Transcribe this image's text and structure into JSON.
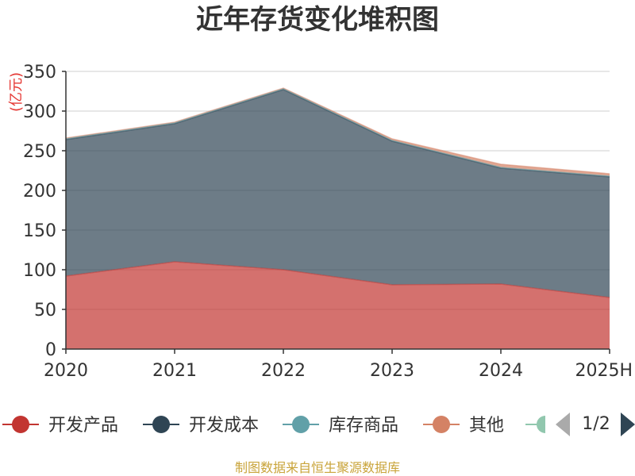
{
  "colors": {
    "series": [
      "#c23531",
      "#2f4554",
      "#61a0a8",
      "#d48265",
      "#91c7ae"
    ],
    "unit": "#e53935",
    "source": "#c9a43a",
    "pager_active": "#2f4554",
    "pager_inactive": "#aaaaaa"
  },
  "legend": {
    "items": [
      {
        "label": "开发产品",
        "icon": "circle-line-marker"
      },
      {
        "label": "开发成本",
        "icon": "circle-line-marker"
      },
      {
        "label": "库存商品",
        "icon": "circle-line-marker"
      },
      {
        "label": "其他",
        "icon": "circle-line-marker"
      },
      {
        "label": "",
        "icon": "circle-line-marker"
      }
    ],
    "page_label": "1/2",
    "prev_icon": "triangle-left-icon",
    "next_icon": "triangle-right-icon"
  },
  "source_text": "制图数据来自恒生聚源数据库",
  "chart_data": {
    "type": "area",
    "stacked": true,
    "title": "近年存货变化堆积图",
    "unit_label": "(亿元)",
    "categories": [
      "2020",
      "2021",
      "2022",
      "2023",
      "2024",
      "2025H"
    ],
    "ylim": [
      0,
      350
    ],
    "yticks": [
      0,
      50,
      100,
      150,
      200,
      250,
      300,
      350
    ],
    "grid": true,
    "legend_position": "bottom",
    "series": [
      {
        "name": "开发产品",
        "values": [
          92,
          110,
          100,
          81,
          82,
          65
        ]
      },
      {
        "name": "开发成本",
        "values": [
          172,
          174,
          227,
          181,
          146,
          152
        ]
      },
      {
        "name": "库存商品",
        "values": [
          1,
          1,
          1,
          1,
          1,
          1
        ]
      },
      {
        "name": "其他",
        "values": [
          1,
          1,
          1,
          2,
          4,
          3
        ]
      }
    ]
  }
}
